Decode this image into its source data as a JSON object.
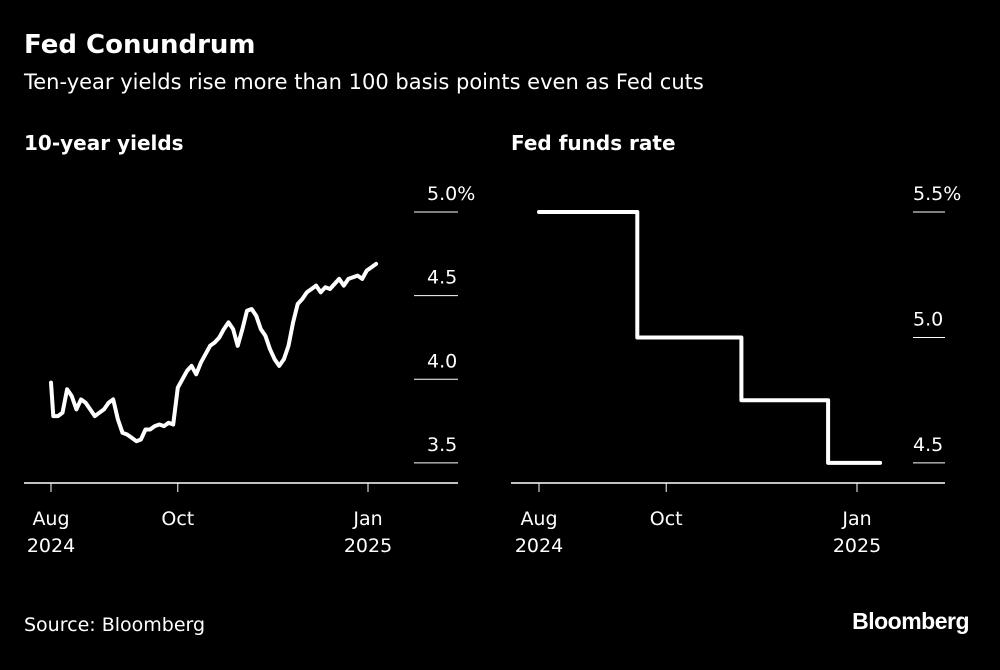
{
  "header": {
    "title": "Fed Conundrum",
    "subtitle": "Ten-year yields rise more than 100 basis points even as Fed cuts"
  },
  "footer": {
    "source": "Source: Bloomberg",
    "logo": "Bloomberg"
  },
  "colors": {
    "background": "#000000",
    "line": "#ffffff",
    "axis": "#ffffff"
  },
  "chart_data": [
    {
      "type": "line",
      "title": "10-year yields",
      "xlabel": "",
      "ylabel": "",
      "x_range": [
        0,
        27.5
      ],
      "ylim": [
        3.38,
        5.0
      ],
      "y_ticks": [
        {
          "value": 3.5,
          "label": "3.5"
        },
        {
          "value": 4.0,
          "label": "4.0"
        },
        {
          "value": 4.5,
          "label": "4.5"
        },
        {
          "value": 5.0,
          "label": "5.0%"
        }
      ],
      "x_ticks": [
        {
          "value": 0,
          "label": "Aug",
          "label2": "2024"
        },
        {
          "value": 11,
          "label": "Oct",
          "label2": ""
        },
        {
          "value": 27.5,
          "label": "Jan",
          "label2": "2025"
        }
      ],
      "x_unit": "weeks since Aug 1, 2024",
      "series": [
        {
          "name": "10-year yield",
          "x": [
            0,
            0.2,
            0.6,
            1.0,
            1.4,
            1.8,
            2.2,
            2.6,
            3.0,
            3.4,
            3.8,
            4.2,
            4.6,
            5.0,
            5.4,
            5.8,
            6.2,
            6.6,
            7.0,
            7.4,
            7.8,
            8.2,
            8.6,
            9.0,
            9.4,
            9.8,
            10.2,
            10.6,
            11.0,
            11.4,
            11.8,
            12.2,
            12.6,
            13.0,
            13.4,
            13.8,
            14.2,
            14.6,
            15.0,
            15.4,
            15.8,
            16.2,
            16.6,
            17.0,
            17.4,
            17.8,
            18.2,
            18.6,
            19.0,
            19.4,
            19.8,
            20.2,
            20.6,
            21.0,
            21.4,
            21.8,
            22.2,
            22.6,
            23.0,
            23.4,
            23.8,
            24.2,
            24.6,
            25.0,
            25.4,
            25.8,
            26.2,
            26.6,
            27.0,
            27.4,
            27.8,
            28.2
          ],
          "values": [
            3.98,
            3.78,
            3.78,
            3.8,
            3.94,
            3.9,
            3.82,
            3.88,
            3.86,
            3.82,
            3.78,
            3.8,
            3.82,
            3.86,
            3.88,
            3.76,
            3.68,
            3.67,
            3.65,
            3.63,
            3.64,
            3.7,
            3.7,
            3.72,
            3.73,
            3.72,
            3.74,
            3.73,
            3.95,
            4.0,
            4.05,
            4.08,
            4.03,
            4.1,
            4.15,
            4.2,
            4.22,
            4.25,
            4.3,
            4.34,
            4.3,
            4.2,
            4.3,
            4.41,
            4.42,
            4.38,
            4.3,
            4.26,
            4.18,
            4.12,
            4.08,
            4.12,
            4.2,
            4.34,
            4.45,
            4.48,
            4.52,
            4.54,
            4.56,
            4.52,
            4.55,
            4.54,
            4.57,
            4.6,
            4.56,
            4.6,
            4.61,
            4.62,
            4.6,
            4.65,
            4.67,
            4.69
          ]
        }
      ]
    },
    {
      "type": "line",
      "title": "Fed funds rate",
      "xlabel": "",
      "ylabel": "",
      "x_range": [
        0,
        27.5
      ],
      "ylim": [
        4.42,
        5.5
      ],
      "y_ticks": [
        {
          "value": 4.5,
          "label": "4.5"
        },
        {
          "value": 5.0,
          "label": "5.0"
        },
        {
          "value": 5.5,
          "label": "5.5%"
        }
      ],
      "x_ticks": [
        {
          "value": 0,
          "label": "Aug",
          "label2": "2024"
        },
        {
          "value": 11,
          "label": "Oct",
          "label2": ""
        },
        {
          "value": 27.5,
          "label": "Jan",
          "label2": "2025"
        }
      ],
      "x_unit": "weeks since Aug 1, 2024",
      "series": [
        {
          "name": "Fed funds rate (upper bound)",
          "x": [
            0,
            8.5,
            8.5,
            17.5,
            17.5,
            25,
            25,
            29.5
          ],
          "values": [
            5.5,
            5.5,
            5.0,
            5.0,
            4.75,
            4.75,
            4.5,
            4.5
          ]
        }
      ]
    }
  ]
}
